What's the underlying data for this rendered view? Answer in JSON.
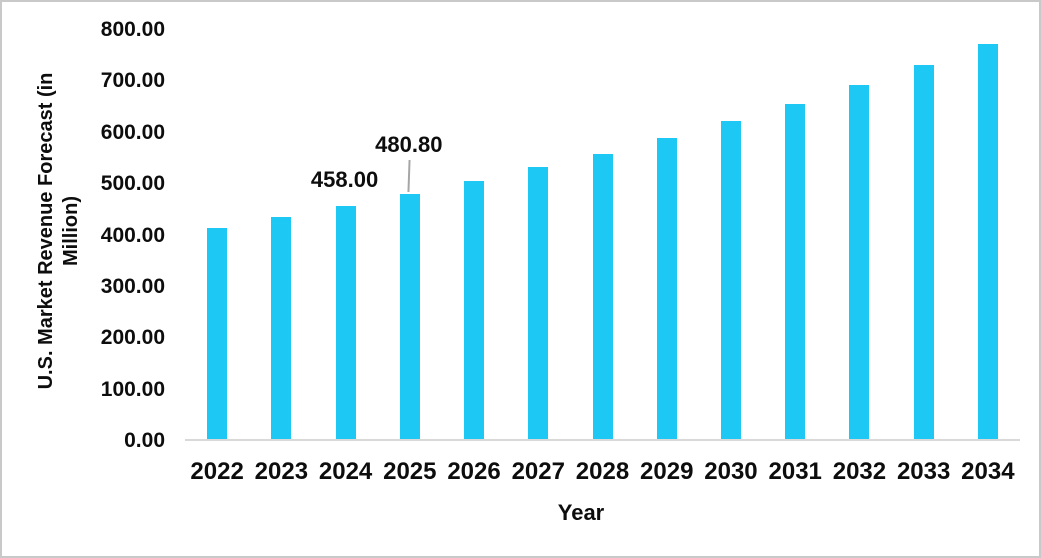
{
  "chart_data": {
    "type": "bar",
    "title": "",
    "categories": [
      "2022",
      "2023",
      "2024",
      "2025",
      "2026",
      "2027",
      "2028",
      "2029",
      "2030",
      "2031",
      "2032",
      "2033",
      "2034"
    ],
    "values": [
      415,
      436,
      458,
      480.8,
      506,
      533,
      559,
      590,
      622,
      656,
      692,
      732,
      772
    ],
    "xlabel": "Year",
    "ylabel": "U.S. Market Revenue Forecast (in Million)",
    "ylabel_lines": [
      "U.S. Market Revenue Forecast (in",
      "Million)"
    ],
    "ylim": [
      0,
      800
    ],
    "ytick_step": 100,
    "ytick_labels": [
      "0.00",
      "100.00",
      "200.00",
      "300.00",
      "400.00",
      "500.00",
      "600.00",
      "700.00",
      "800.00"
    ],
    "grid": false,
    "legend_position": "none",
    "bar_color": "#1EC8F5",
    "axis_line_color": "#D9D9D9",
    "leader_line_color": "#A6A6A6",
    "text_color": "#0D0D0D",
    "data_labels": [
      {
        "category": "2024",
        "text": "458.00",
        "raised": false,
        "leader_line": false
      },
      {
        "category": "2025",
        "text": "480.80",
        "raised": true,
        "leader_line": true
      }
    ]
  }
}
